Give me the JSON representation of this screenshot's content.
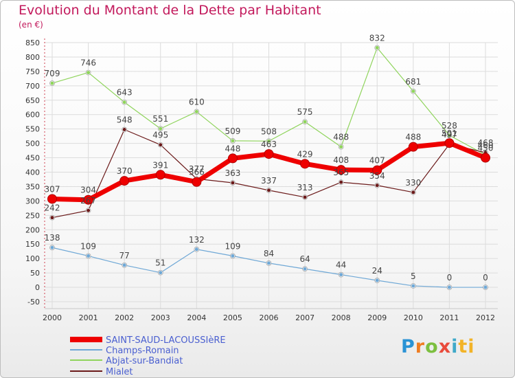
{
  "header": {
    "title": "Evolution du Montant de la Dette par Habitant",
    "subtitle": "(en €)"
  },
  "brand": {
    "logo_text": "Proxiti",
    "logo_letters": [
      "P",
      "r",
      "o",
      "x",
      "i",
      "ti"
    ]
  },
  "chart_data": {
    "type": "line",
    "title": "Evolution du Montant de la Dette par Habitant",
    "subtitle": "(en €)",
    "xlabel": "",
    "ylabel": "",
    "ylim": [
      -50,
      850
    ],
    "y_ticks": [
      -50,
      0,
      50,
      100,
      150,
      200,
      250,
      300,
      350,
      400,
      450,
      500,
      550,
      600,
      650,
      700,
      750,
      800,
      850
    ],
    "x": [
      "2000",
      "2001",
      "2002",
      "2003",
      "2004",
      "2005",
      "2006",
      "2007",
      "2008",
      "2009",
      "2010",
      "2011",
      "2012"
    ],
    "grid": true,
    "legend_position": "bottom-left",
    "series": [
      {
        "name": "SAINT-SAUD-LACOUSSIèRE",
        "color": "#ee0000",
        "values": [
          307,
          304,
          370,
          391,
          366,
          448,
          463,
          429,
          408,
          407,
          488,
          501,
          450
        ]
      },
      {
        "name": "Champs-Romain",
        "color": "#6fa8d6",
        "values": [
          138,
          109,
          77,
          51,
          132,
          109,
          84,
          64,
          44,
          24,
          5,
          0,
          0
        ]
      },
      {
        "name": "Abjat-sur-Bandiat",
        "color": "#8fd45c",
        "values": [
          709,
          746,
          643,
          551,
          610,
          509,
          508,
          575,
          488,
          832,
          681,
          528,
          460
        ]
      },
      {
        "name": "Mialet",
        "color": "#6b1a1a",
        "values": [
          242,
          267,
          548,
          495,
          377,
          363,
          337,
          313,
          365,
          354,
          330,
          497,
          468
        ]
      }
    ]
  }
}
